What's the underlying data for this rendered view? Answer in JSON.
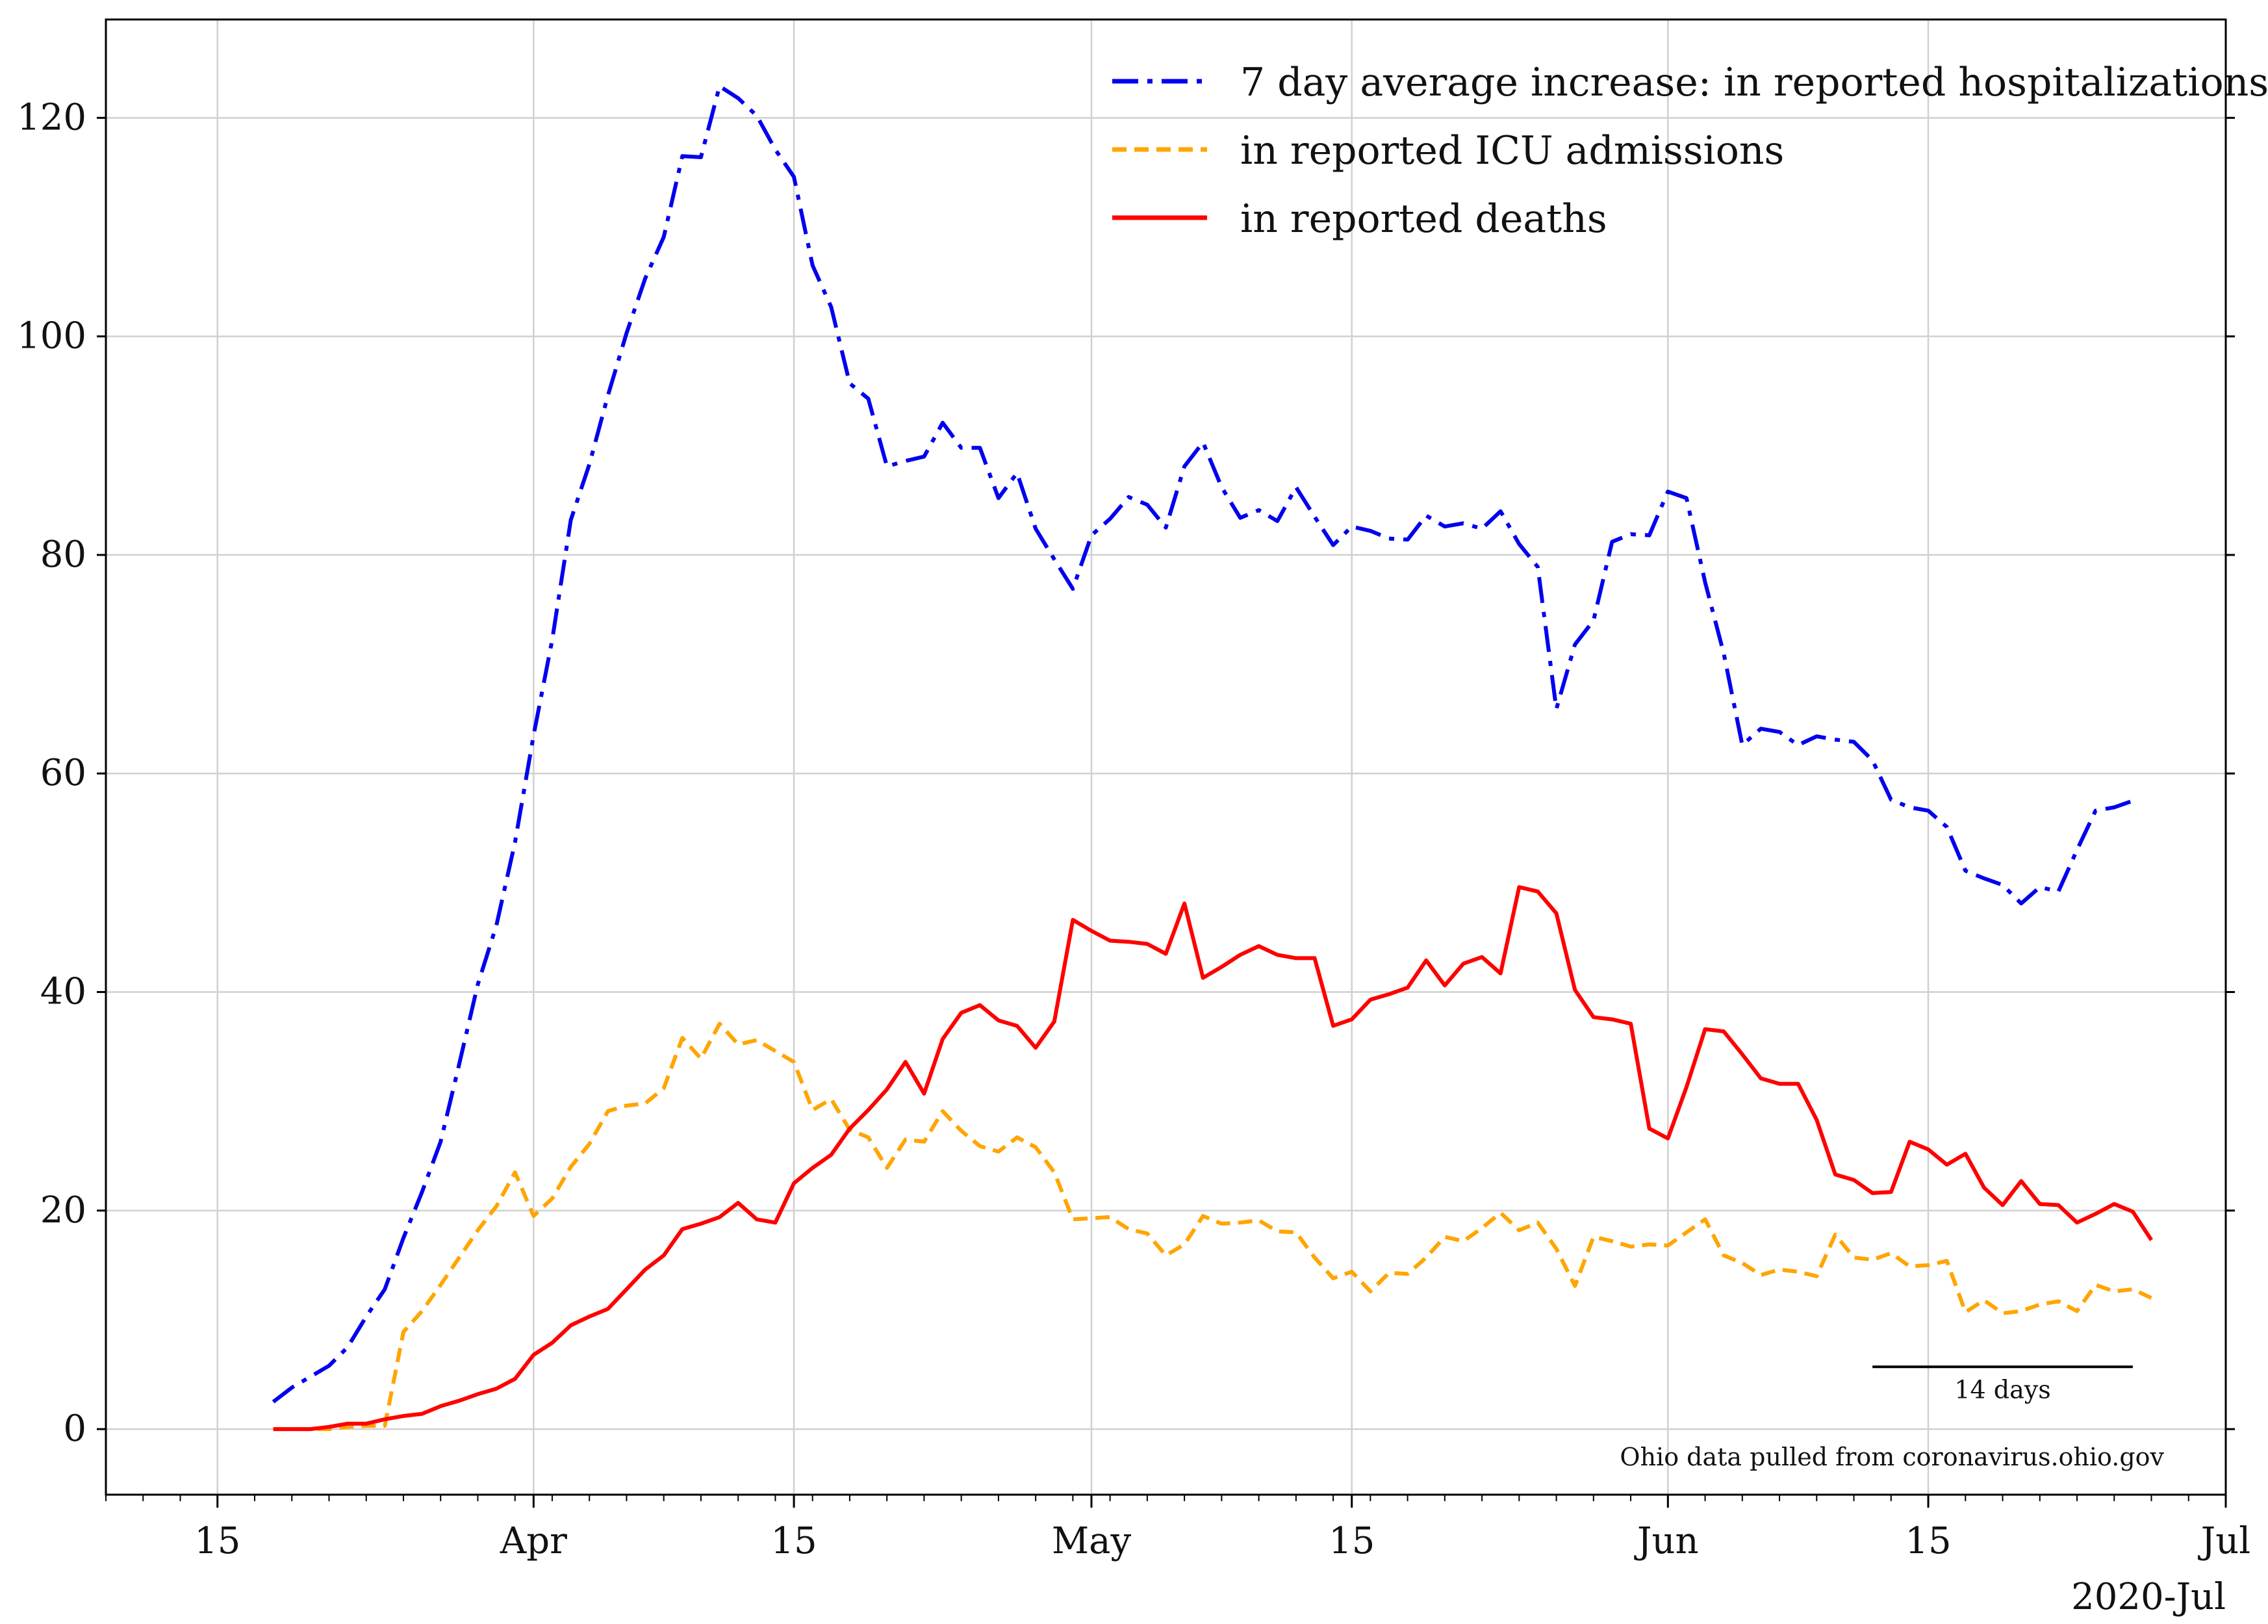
{
  "chart_data": {
    "type": "line",
    "xlabel": "",
    "ylabel": "",
    "x_start": "2020-03-18",
    "x_end": "2020-06-26",
    "x_domain": [
      "2020-03-09",
      "2020-07-01"
    ],
    "ylim": [
      -6,
      129
    ],
    "y_ticks": [
      0,
      20,
      40,
      60,
      80,
      100,
      120
    ],
    "y_tick_labels": [
      "0",
      "20",
      "40",
      "60",
      "80",
      "100",
      "120"
    ],
    "x_ticks": [
      {
        "date": "2020-03-15",
        "label": "15"
      },
      {
        "date": "2020-04-01",
        "label": "Apr"
      },
      {
        "date": "2020-04-15",
        "label": "15"
      },
      {
        "date": "2020-05-01",
        "label": "May"
      },
      {
        "date": "2020-05-15",
        "label": "15"
      },
      {
        "date": "2020-06-01",
        "label": "Jun"
      },
      {
        "date": "2020-06-15",
        "label": "15"
      },
      {
        "date": "2020-07-01",
        "label": "Jul"
      }
    ],
    "x_axis_offset_label": "2020-Jul",
    "grid": true,
    "legend_position": "top-right",
    "annotations": {
      "scale_bar": {
        "length_days": 14,
        "label": "14 days",
        "start": "2020-06-12",
        "end": "2020-06-26",
        "y": 5.7
      },
      "source": "Ohio data pulled from coronavirus.ohio.gov"
    },
    "series": [
      {
        "name": "7 day average increase: in reported hospitalizations",
        "color": "#0000ee",
        "style": "dashdot",
        "values": [
          2.5,
          3.8,
          4.8,
          5.8,
          7.5,
          10.3,
          12.8,
          17.5,
          21.7,
          26.3,
          33.4,
          40.7,
          46.1,
          53.7,
          63.5,
          72.2,
          83.2,
          88.3,
          94.6,
          100.3,
          105.3,
          109.1,
          116.5,
          116.4,
          122.9,
          121.8,
          120.2,
          117.1,
          114.6,
          106.5,
          102.7,
          95.7,
          94.3,
          88.1,
          88.6,
          89.0,
          92.1,
          89.8,
          89.8,
          85.2,
          87.5,
          82.4,
          79.6,
          76.9,
          81.8,
          83.3,
          85.3,
          84.6,
          82.5,
          88.1,
          90.3,
          86.2,
          83.4,
          84.1,
          83.1,
          86.2,
          83.5,
          80.9,
          82.6,
          82.2,
          81.5,
          81.4,
          83.6,
          82.6,
          82.9,
          82.4,
          84.0,
          81.0,
          78.9,
          65.9,
          71.8,
          74.0,
          81.2,
          81.9,
          81.8,
          85.8,
          85.2,
          77.5,
          71.0,
          62.6,
          64.1,
          63.8,
          62.6,
          63.4,
          63.1,
          62.9,
          61.2,
          57.6,
          56.9,
          56.6,
          55.1,
          51.1,
          50.4,
          49.8,
          48.1,
          49.6,
          49.2,
          53.0,
          56.6,
          56.9,
          57.5
        ]
      },
      {
        "name": "in reported ICU admissions",
        "color": "#ffa500",
        "style": "dashed",
        "values": [
          0,
          0,
          0,
          0,
          0.2,
          0.3,
          0.3,
          8.9,
          10.8,
          13.2,
          15.7,
          18.2,
          20.4,
          23.5,
          19.5,
          21.1,
          24.0,
          26.1,
          29.1,
          29.6,
          29.8,
          31.2,
          35.8,
          33.9,
          37.1,
          35.2,
          35.6,
          34.6,
          33.6,
          29.2,
          30.2,
          27.4,
          26.7,
          23.9,
          26.5,
          26.3,
          29.1,
          27.3,
          25.9,
          25.4,
          26.7,
          25.8,
          23.5,
          19.2,
          19.3,
          19.4,
          18.3,
          17.9,
          15.9,
          16.9,
          19.5,
          18.8,
          18.9,
          19.1,
          18.1,
          18.0,
          15.7,
          13.8,
          14.4,
          12.6,
          14.3,
          14.2,
          15.7,
          17.6,
          17.2,
          18.4,
          19.8,
          18.2,
          18.9,
          16.5,
          13.1,
          17.6,
          17.2,
          16.7,
          16.9,
          16.8,
          18.0,
          19.2,
          15.9,
          15.2,
          14.1,
          14.6,
          14.4,
          14.0,
          17.8,
          15.7,
          15.5,
          16.1,
          14.9,
          15.0,
          15.4,
          10.7,
          11.8,
          10.6,
          10.8,
          11.4,
          11.7,
          10.8,
          13.2,
          12.6,
          12.8,
          12.0
        ]
      },
      {
        "name": "in reported deaths",
        "color": "#ff0000",
        "style": "solid",
        "values": [
          0,
          0,
          0,
          0.2,
          0.5,
          0.5,
          0.9,
          1.2,
          1.4,
          2.1,
          2.6,
          3.2,
          3.7,
          4.6,
          6.8,
          7.9,
          9.5,
          10.3,
          11.0,
          12.8,
          14.6,
          15.9,
          18.3,
          18.8,
          19.4,
          20.7,
          19.2,
          18.9,
          22.5,
          23.9,
          25.1,
          27.5,
          29.2,
          31.1,
          33.6,
          30.7,
          35.7,
          38.1,
          38.8,
          37.4,
          36.9,
          34.9,
          37.3,
          46.6,
          45.6,
          44.7,
          44.6,
          44.4,
          43.5,
          48.1,
          41.3,
          42.3,
          43.4,
          44.2,
          43.4,
          43.1,
          43.1,
          36.9,
          37.5,
          39.3,
          39.8,
          40.4,
          42.9,
          40.6,
          42.6,
          43.2,
          41.7,
          49.6,
          49.2,
          47.2,
          40.2,
          37.7,
          37.5,
          37.1,
          27.5,
          26.6,
          31.3,
          36.6,
          36.4,
          34.3,
          32.1,
          31.6,
          31.6,
          28.3,
          23.3,
          22.8,
          21.6,
          21.7,
          26.3,
          25.6,
          24.2,
          25.2,
          22.1,
          20.5,
          22.7,
          20.6,
          20.5,
          18.9,
          19.7,
          20.6,
          19.9,
          17.3
        ]
      }
    ]
  }
}
